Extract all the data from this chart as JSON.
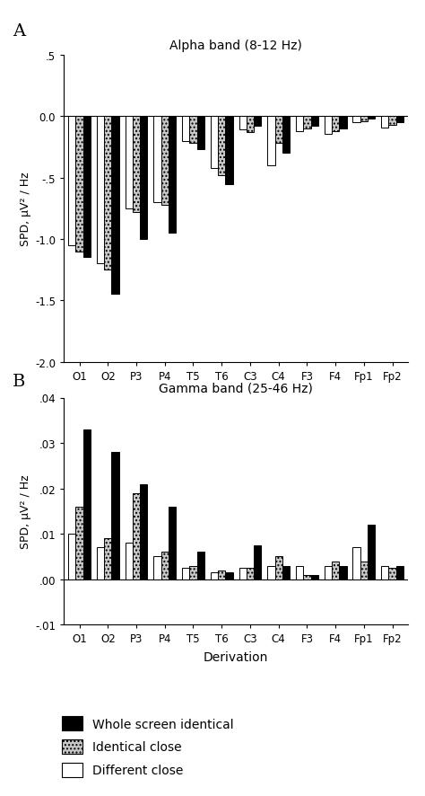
{
  "categories": [
    "O1",
    "O2",
    "P3",
    "P4",
    "T5",
    "T6",
    "C3",
    "C4",
    "F3",
    "F4",
    "Fp1",
    "Fp2"
  ],
  "alpha": {
    "title": "Alpha band (8-12 Hz)",
    "ylabel": "SPD, μV² / Hz",
    "ylim": [
      -2.0,
      0.5
    ],
    "yticks": [
      -2.0,
      -1.5,
      -1.0,
      -0.5,
      0.0,
      0.5
    ],
    "yticklabels": [
      "-2.0",
      "-1.5",
      "-1.0",
      "-.5",
      "0.0",
      ".5"
    ],
    "whole_screen": [
      -1.15,
      -1.45,
      -1.0,
      -0.95,
      -0.27,
      -0.55,
      -0.08,
      -0.3,
      -0.08,
      -0.1,
      -0.02,
      -0.05
    ],
    "identical_close": [
      -1.1,
      -1.25,
      -0.78,
      -0.72,
      -0.22,
      -0.48,
      -0.13,
      -0.22,
      -0.1,
      -0.12,
      -0.04,
      -0.07
    ],
    "different_close": [
      -1.05,
      -1.2,
      -0.75,
      -0.7,
      -0.2,
      -0.42,
      -0.11,
      -0.4,
      -0.12,
      -0.14,
      -0.05,
      -0.09
    ]
  },
  "gamma": {
    "title": "Gamma band (25-46 Hz)",
    "ylabel": "SPD, μV² / Hz",
    "xlabel": "Derivation",
    "ylim": [
      -0.01,
      0.04
    ],
    "yticks": [
      -0.01,
      0.0,
      0.01,
      0.02,
      0.03,
      0.04
    ],
    "yticklabels": [
      "-.01",
      ".00",
      ".01",
      ".02",
      ".03",
      ".04"
    ],
    "whole_screen": [
      0.033,
      0.028,
      0.021,
      0.016,
      0.006,
      0.0015,
      0.0075,
      0.003,
      0.001,
      0.003,
      0.012,
      0.003
    ],
    "identical_close": [
      0.016,
      0.009,
      0.019,
      0.006,
      0.003,
      0.002,
      0.0025,
      0.005,
      0.001,
      0.004,
      0.004,
      0.0025
    ],
    "different_close": [
      0.01,
      0.007,
      0.008,
      0.005,
      0.0025,
      0.0015,
      0.0025,
      0.003,
      0.003,
      0.003,
      0.007,
      0.003
    ]
  },
  "colors": {
    "whole_screen": "#000000",
    "identical_close": "#aaaaaa",
    "different_close": "#ffffff"
  },
  "legend": {
    "whole_screen": "Whole screen identical",
    "identical_close": "Identical close",
    "different_close": "Different close"
  },
  "bar_width": 0.26,
  "background_color": "#ffffff"
}
